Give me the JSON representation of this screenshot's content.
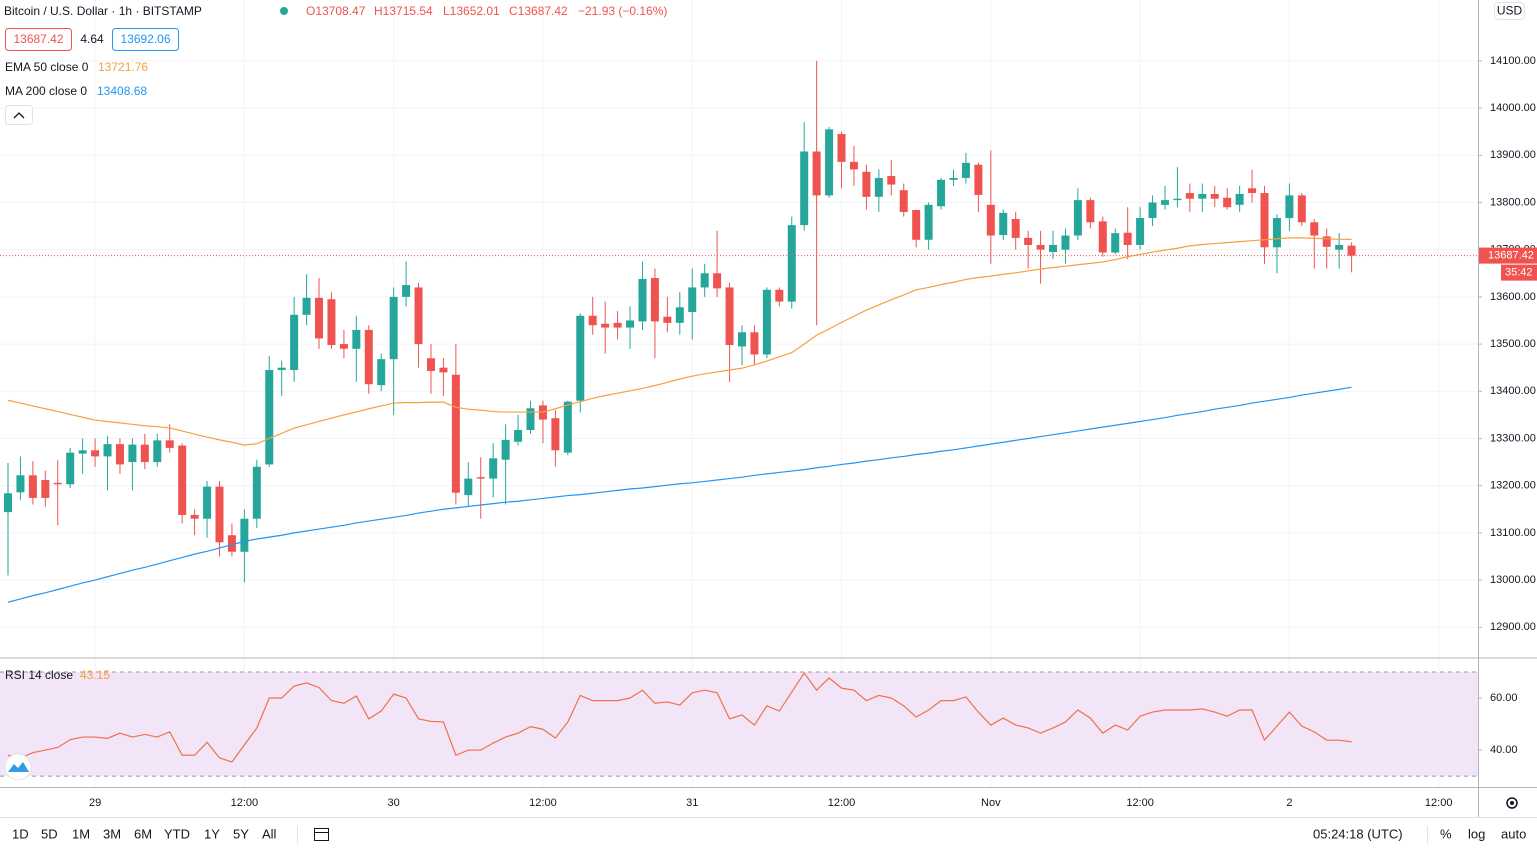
{
  "header": {
    "title": "Bitcoin / U.S. Dollar · 1h · BITSTAMP",
    "ohlc": [
      "O13708.47",
      "H13715.54",
      "L13652.01",
      "C13687.42"
    ],
    "change": "−21.93 (−0.16%)",
    "spread": "4.64",
    "ask": "13692.06",
    "currency": "USD",
    "countdown": "35:42"
  },
  "chart_data": [
    {
      "type": "candlestick",
      "categories": [
        null,
        null,
        null,
        null,
        null,
        null,
        null,
        "29",
        null,
        null,
        null,
        null,
        null,
        null,
        null,
        null,
        null,
        null,
        null,
        "12:00",
        null,
        null,
        null,
        null,
        null,
        null,
        null,
        null,
        null,
        null,
        null,
        "30",
        null,
        null,
        null,
        null,
        null,
        null,
        null,
        null,
        null,
        null,
        null,
        "12:00",
        null,
        null,
        null,
        null,
        null,
        null,
        null,
        null,
        null,
        null,
        null,
        "31",
        null,
        null,
        null,
        null,
        null,
        null,
        null,
        null,
        null,
        null,
        null,
        "12:00",
        null,
        null,
        null,
        null,
        null,
        null,
        null,
        null,
        null,
        null,
        null,
        "Nov",
        null,
        null,
        null,
        null,
        null,
        null,
        null,
        null,
        null,
        null,
        null,
        "12:00",
        null,
        null,
        null,
        null,
        null,
        null,
        null,
        null,
        null,
        null,
        null,
        "2",
        null,
        null,
        null,
        null,
        null,
        null,
        null,
        null,
        null,
        null,
        null,
        "12:00",
        null,
        null,
        null
      ],
      "open": [
        13144,
        13186,
        13222,
        13212,
        13206,
        13203,
        13268,
        13275,
        13262,
        13288,
        13250,
        13287,
        13250,
        13296,
        13285,
        13138,
        13130,
        13198,
        13095,
        13060,
        13130,
        13245,
        13445,
        13445,
        13562,
        13598,
        13595,
        13500,
        13490,
        13530,
        13413,
        13468,
        13600,
        13620,
        13470,
        13450,
        13435,
        13180,
        13218,
        13215,
        13255,
        13293,
        13318,
        13370,
        13343,
        13270,
        13380,
        13560,
        13543,
        13545,
        13535,
        13548,
        13640,
        13558,
        13545,
        13568,
        13620,
        13650,
        13620,
        13495,
        13525,
        13478,
        13615,
        13590,
        13752,
        13908,
        13815,
        13945,
        13886,
        13865,
        13812,
        13856,
        13826,
        13784,
        13721,
        13792,
        13848,
        13852,
        13880,
        13795,
        13731,
        13765,
        13725,
        13710,
        13695,
        13700,
        13730,
        13805,
        13760,
        13694,
        13736,
        13710,
        13767,
        13795,
        13805,
        13820,
        13808,
        13818,
        13810,
        13795,
        13830,
        13820,
        13705,
        13767,
        13815,
        13758,
        13728,
        13700,
        13708.47,
        null,
        null,
        null,
        null,
        null,
        null,
        null,
        null,
        null,
        null
      ],
      "high": [
        13248,
        13262,
        13252,
        13232,
        13254,
        13280,
        13300,
        13300,
        13305,
        13300,
        13300,
        13310,
        13310,
        13330,
        13290,
        13150,
        13210,
        13210,
        13120,
        13150,
        13255,
        13475,
        13465,
        13600,
        13648,
        13640,
        13610,
        13530,
        13560,
        13540,
        13480,
        13620,
        13675,
        13630,
        13500,
        13470,
        13500,
        13250,
        13260,
        13290,
        13330,
        13350,
        13380,
        13380,
        13360,
        13380,
        13565,
        13600,
        13590,
        13570,
        13580,
        13675,
        13660,
        13600,
        13610,
        13660,
        13670,
        13740,
        13630,
        13540,
        13540,
        13620,
        13620,
        13770,
        13970,
        14100,
        13960,
        13950,
        13920,
        13880,
        13870,
        13890,
        13840,
        13785,
        13800,
        13852,
        13870,
        13905,
        13885,
        13910,
        13785,
        13780,
        13740,
        13740,
        13740,
        13745,
        13830,
        13810,
        13770,
        13745,
        13790,
        13790,
        13815,
        13835,
        13875,
        13840,
        13840,
        13835,
        13830,
        13835,
        13870,
        13835,
        13775,
        13840,
        13820,
        13765,
        13745,
        13735,
        13715.54,
        null,
        null,
        null,
        null,
        null,
        null,
        null,
        null,
        null,
        null
      ],
      "low": [
        13010,
        13170,
        13160,
        13155,
        13116,
        13195,
        13225,
        13240,
        13190,
        13225,
        13190,
        13235,
        13240,
        13270,
        13120,
        13095,
        13090,
        13050,
        13050,
        12995,
        13110,
        13240,
        13390,
        13420,
        13540,
        13490,
        13490,
        13470,
        13420,
        13395,
        13400,
        13350,
        13580,
        13450,
        13395,
        13390,
        13160,
        13155,
        13130,
        13175,
        13160,
        13285,
        13310,
        13290,
        13240,
        13265,
        13355,
        13520,
        13480,
        13510,
        13490,
        13530,
        13470,
        13525,
        13520,
        13510,
        13600,
        13600,
        13420,
        13455,
        13455,
        13470,
        13580,
        13575,
        13740,
        13540,
        13810,
        13830,
        13835,
        13785,
        13780,
        13815,
        13770,
        13705,
        13700,
        13785,
        13835,
        13840,
        13780,
        13670,
        13720,
        13700,
        13660,
        13628,
        13680,
        13670,
        13720,
        13745,
        13685,
        13690,
        13680,
        13700,
        13750,
        13785,
        13790,
        13780,
        13780,
        13790,
        13785,
        13780,
        13800,
        13670,
        13650,
        13740,
        13750,
        13660,
        13660,
        13660,
        13652.01,
        null,
        null,
        null,
        null,
        null,
        null,
        null,
        null,
        null,
        null
      ],
      "close": [
        13184,
        13222,
        13174,
        13174,
        13203,
        13270,
        13275,
        13262,
        13288,
        13245,
        13287,
        13250,
        13296,
        13280,
        13138,
        13130,
        13198,
        13080,
        13060,
        13130,
        13240,
        13445,
        13450,
        13562,
        13598,
        13512,
        13498,
        13490,
        13530,
        13415,
        13468,
        13600,
        13625,
        13500,
        13443,
        13440,
        13185,
        13215,
        13215,
        13258,
        13297,
        13318,
        13364,
        13340,
        13275,
        13378,
        13560,
        13540,
        13535,
        13535,
        13550,
        13638,
        13548,
        13545,
        13578,
        13620,
        13650,
        13618,
        13498,
        13525,
        13478,
        13615,
        13590,
        13752,
        13908,
        13815,
        13955,
        13886,
        13870,
        13812,
        13852,
        13838,
        13780,
        13721,
        13795,
        13848,
        13852,
        13884,
        13816,
        13730,
        13778,
        13725,
        13710,
        13700,
        13710,
        13730,
        13805,
        13758,
        13694,
        13735,
        13710,
        13767,
        13800,
        13805,
        13808,
        13808,
        13818,
        13808,
        13790,
        13818,
        13820,
        13705,
        13767,
        13815,
        13758,
        13730,
        13706,
        13710,
        13687.42,
        null,
        null,
        null,
        null,
        null,
        null,
        null,
        null,
        null,
        null
      ],
      "up_color": "#26a69a",
      "down_color": "#ef5350",
      "ylim": [
        12837,
        14229
      ],
      "yticks": [
        {
          "value": 12900,
          "label": "12900.00"
        },
        {
          "value": 13000,
          "label": "13000.00"
        },
        {
          "value": 13100,
          "label": "13100.00"
        },
        {
          "value": 13200,
          "label": "13200.00"
        },
        {
          "value": 13300,
          "label": "13300.00"
        },
        {
          "value": 13400,
          "label": "13400.00"
        },
        {
          "value": 13500,
          "label": "13500.00"
        },
        {
          "value": 13600,
          "label": "13600.00"
        },
        {
          "value": 13700,
          "label": "13700.00"
        },
        {
          "value": 13800,
          "label": "13800.00"
        },
        {
          "value": 13900,
          "label": "13900.00"
        },
        {
          "value": 14000,
          "label": "14000.00"
        },
        {
          "value": 14100,
          "label": "14100.00"
        }
      ],
      "grid": true,
      "overlays": [
        {
          "name": "EMA 50 close 0",
          "color": "#f7a03c",
          "values": [
            13381,
            13375,
            13369,
            13363,
            13357,
            13351,
            13345,
            13339,
            13336,
            13333,
            13330,
            13327,
            13325,
            13322,
            13316,
            13309,
            13303,
            13297,
            13292,
            13286,
            13289,
            13300,
            13311,
            13322,
            13329,
            13336,
            13343,
            13350,
            13356,
            13363,
            13369,
            13375,
            13376,
            13376,
            13377,
            13377,
            13366,
            13362,
            13360,
            13357,
            13356,
            13356,
            13356,
            13356,
            13363,
            13371,
            13378,
            13385,
            13391,
            13396,
            13401,
            13406,
            13412,
            13419,
            13426,
            13432,
            13437,
            13441,
            13445,
            13449,
            13456,
            13464,
            13473,
            13482,
            13500,
            13519,
            13532,
            13546,
            13559,
            13572,
            13583,
            13594,
            13604,
            13615,
            13620,
            13626,
            13631,
            13637,
            13641,
            13644,
            13648,
            13651,
            13655,
            13659,
            13662,
            13665,
            13668,
            13671,
            13674,
            13679,
            13685,
            13690,
            13695,
            13699,
            13703,
            13708,
            13711,
            13713,
            13715,
            13717,
            13719,
            13721,
            13723,
            13725,
            13725,
            13724,
            13723,
            13722,
            13721.76,
            null,
            null,
            null,
            null,
            null,
            null,
            null,
            null,
            null,
            null
          ]
        },
        {
          "name": "MA 200 close 0",
          "color": "#2196f3",
          "values": [
            12953,
            12960,
            12967,
            12973,
            12980,
            12987,
            12994,
            13000,
            13007,
            13014,
            13021,
            13027,
            13034,
            13041,
            13048,
            13055,
            13061,
            13068,
            13075,
            13082,
            13087,
            13091,
            13095,
            13100,
            13104,
            13108,
            13112,
            13116,
            13121,
            13125,
            13129,
            13133,
            13137,
            13142,
            13146,
            13150,
            13153,
            13156,
            13159,
            13162,
            13165,
            13167,
            13170,
            13173,
            13176,
            13179,
            13181,
            13184,
            13187,
            13190,
            13193,
            13195,
            13198,
            13201,
            13204,
            13206,
            13209,
            13212,
            13215,
            13218,
            13222,
            13225,
            13228,
            13231,
            13234,
            13238,
            13241,
            13245,
            13248,
            13252,
            13255,
            13259,
            13262,
            13266,
            13269,
            13273,
            13276,
            13280,
            13284,
            13288,
            13292,
            13296,
            13300,
            13304,
            13308,
            13312,
            13316,
            13320,
            13324,
            13328,
            13332,
            13336,
            13340,
            13344,
            13349,
            13353,
            13357,
            13362,
            13366,
            13370,
            13375,
            13379,
            13383,
            13387,
            13392,
            13396,
            13400,
            13404,
            13408.68,
            null,
            null,
            null,
            null,
            null,
            null,
            null,
            null,
            null,
            null
          ]
        }
      ]
    },
    {
      "type": "line",
      "title": "RSI 14 close",
      "color": "#f0714a",
      "values": [
        38,
        37,
        39,
        40,
        41,
        44,
        45,
        45,
        44.5,
        46.5,
        45,
        46,
        45,
        47,
        38,
        38,
        43,
        37,
        35.4,
        42,
        48.5,
        60,
        60,
        64.6,
        65.8,
        64,
        59,
        58,
        60.8,
        52,
        55,
        61.5,
        60,
        52,
        51,
        50.8,
        38,
        40,
        40,
        42.7,
        45,
        46.5,
        49,
        48,
        44.6,
        50.8,
        61,
        59,
        59,
        59,
        60,
        63,
        58,
        58.5,
        57.3,
        62,
        63,
        62,
        52,
        53.5,
        49.6,
        57,
        55,
        62.3,
        69.6,
        63,
        67.7,
        63.8,
        63,
        59,
        61,
        60,
        57,
        52.7,
        55.4,
        59,
        59,
        60.4,
        54.6,
        49.6,
        52.3,
        49.6,
        48.5,
        46.5,
        48.5,
        50.8,
        55.4,
        52.3,
        46.5,
        49.6,
        47.7,
        53,
        54.6,
        55.4,
        55.4,
        55.4,
        55.8,
        54.6,
        53,
        55.4,
        55.4,
        43.8,
        49.2,
        54.6,
        49.2,
        47,
        43.8,
        43.8,
        43.15,
        null,
        null,
        null,
        null,
        null,
        null,
        null,
        null,
        null,
        null
      ],
      "ylim": [
        25.8,
        75
      ],
      "yticks": [
        {
          "value": 40,
          "label": "40.00"
        },
        {
          "value": 60,
          "label": "60.00"
        }
      ],
      "bands": [
        30,
        70
      ],
      "band_color": "#f3e5f8",
      "grid": false
    }
  ],
  "toolbar": {
    "ranges": [
      "1D",
      "5D",
      "1M",
      "3M",
      "6M",
      "YTD",
      "1Y",
      "5Y",
      "All"
    ],
    "clock": "05:24:18 (UTC)",
    "options": [
      "%",
      "log",
      "auto"
    ]
  }
}
